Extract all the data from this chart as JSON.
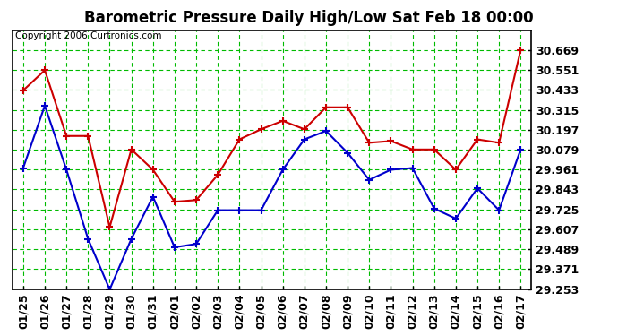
{
  "title": "Barometric Pressure Daily High/Low Sat Feb 18 00:00",
  "copyright": "Copyright 2006 Curtronics.com",
  "dates": [
    "01/25",
    "01/26",
    "01/27",
    "01/28",
    "01/29",
    "01/30",
    "01/31",
    "02/01",
    "02/02",
    "02/03",
    "02/04",
    "02/05",
    "02/06",
    "02/07",
    "02/08",
    "02/09",
    "02/10",
    "02/11",
    "02/12",
    "02/13",
    "02/14",
    "02/15",
    "02/16",
    "02/17"
  ],
  "high": [
    30.43,
    30.55,
    30.16,
    30.16,
    29.62,
    30.08,
    29.96,
    29.77,
    29.78,
    29.93,
    30.14,
    30.2,
    30.25,
    30.2,
    30.33,
    30.33,
    30.12,
    30.13,
    30.08,
    30.08,
    29.96,
    30.14,
    30.12,
    30.67
  ],
  "low": [
    29.97,
    30.34,
    29.96,
    29.55,
    29.25,
    29.55,
    29.8,
    29.5,
    29.52,
    29.72,
    29.72,
    29.72,
    29.96,
    30.14,
    30.19,
    30.06,
    29.9,
    29.96,
    29.97,
    29.73,
    29.67,
    29.85,
    29.72,
    30.08
  ],
  "ylim_min": 29.253,
  "ylim_max": 30.787,
  "yticks": [
    29.253,
    29.371,
    29.489,
    29.607,
    29.725,
    29.843,
    29.961,
    30.079,
    30.197,
    30.315,
    30.433,
    30.551,
    30.669
  ],
  "high_color": "#cc0000",
  "low_color": "#0000cc",
  "grid_color": "#00bb00",
  "bg_color": "#ffffff",
  "plot_bg_color": "#ffffff",
  "title_fontsize": 12,
  "copyright_fontsize": 7.5,
  "tick_fontsize": 9
}
